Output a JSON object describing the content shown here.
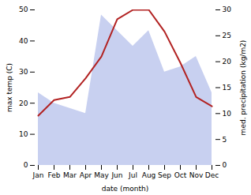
{
  "chart_data": {
    "type": "line",
    "categories": [
      "Jan",
      "Feb",
      "Mar",
      "Apr",
      "May",
      "Jun",
      "Jul",
      "Aug",
      "Sep",
      "Oct",
      "Nov",
      "Dec"
    ],
    "series": [
      {
        "type": "area",
        "color": "#c8d0f0",
        "axis": "y2",
        "values": [
          14,
          12,
          11,
          10,
          29,
          26,
          23,
          26,
          18,
          19,
          21,
          14
        ]
      },
      {
        "type": "line",
        "color": "#b22222",
        "values": [
          16,
          21,
          22,
          28,
          35,
          47,
          50,
          50,
          43,
          33,
          22,
          19
        ]
      }
    ],
    "xlabel": "date (month)",
    "ylabel": "max temp (C)",
    "y2label": "med. precipitation (kg/m2)",
    "ylim": [
      0,
      50
    ],
    "yticks": [
      0,
      10,
      20,
      30,
      40,
      50
    ],
    "y2lim": [
      0,
      30
    ],
    "y2ticks": [
      0,
      5,
      10,
      15,
      20,
      25,
      30
    ]
  }
}
